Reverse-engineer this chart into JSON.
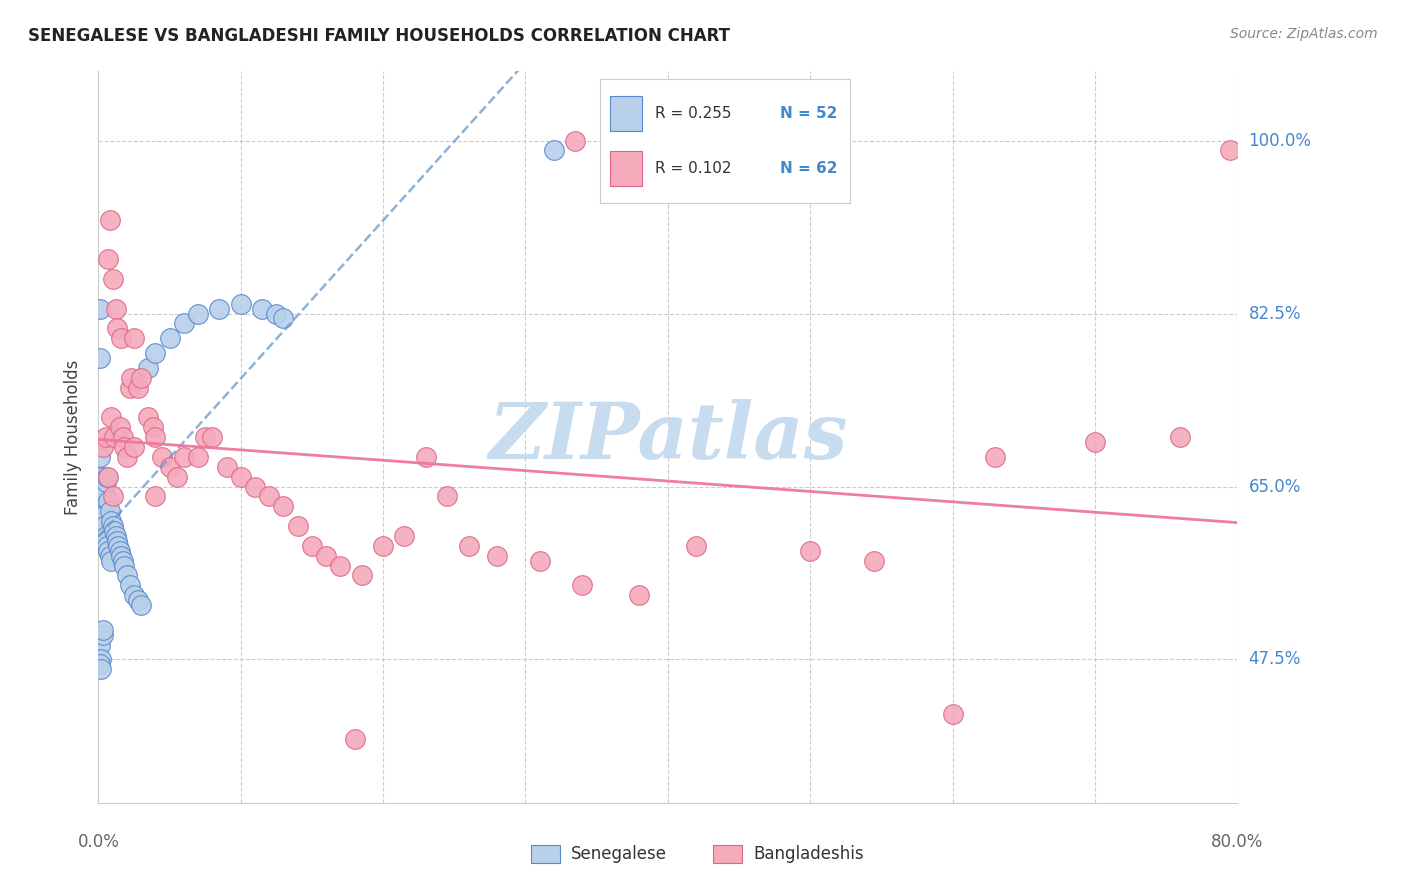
{
  "title": "SENEGALESE VS BANGLADESHI FAMILY HOUSEHOLDS CORRELATION CHART",
  "source": "Source: ZipAtlas.com",
  "ylabel": "Family Households",
  "ytick_labels": [
    "100.0%",
    "82.5%",
    "65.0%",
    "47.5%"
  ],
  "ytick_values": [
    1.0,
    0.825,
    0.65,
    0.475
  ],
  "legend_blue_R": "R = 0.255",
  "legend_blue_N": "N = 52",
  "legend_pink_R": "R = 0.102",
  "legend_pink_N": "N = 62",
  "blue_fill": "#B8D0EA",
  "pink_fill": "#F4AABB",
  "blue_edge": "#5588CC",
  "pink_edge": "#DD6688",
  "blue_line": "#6699CC",
  "pink_line": "#EE7799",
  "watermark_color": "#C8DCF0",
  "grid_color": "#CCCCCC",
  "blue_scatter_x": [
    0.001,
    0.001,
    0.001,
    0.001,
    0.001,
    0.002,
    0.002,
    0.002,
    0.003,
    0.003,
    0.003,
    0.004,
    0.004,
    0.005,
    0.005,
    0.005,
    0.006,
    0.006,
    0.007,
    0.007,
    0.008,
    0.008,
    0.009,
    0.009,
    0.01,
    0.011,
    0.012,
    0.013,
    0.014,
    0.015,
    0.016,
    0.017,
    0.018,
    0.02,
    0.022,
    0.025,
    0.028,
    0.03,
    0.035,
    0.04,
    0.05,
    0.06,
    0.07,
    0.085,
    0.1,
    0.115,
    0.125,
    0.13,
    0.001,
    0.002,
    0.32,
    0.003
  ],
  "blue_scatter_y": [
    0.83,
    0.78,
    0.68,
    0.66,
    0.49,
    0.66,
    0.64,
    0.475,
    0.65,
    0.62,
    0.5,
    0.645,
    0.61,
    0.655,
    0.6,
    0.595,
    0.66,
    0.59,
    0.635,
    0.585,
    0.625,
    0.58,
    0.615,
    0.575,
    0.61,
    0.605,
    0.6,
    0.595,
    0.59,
    0.585,
    0.58,
    0.575,
    0.57,
    0.56,
    0.55,
    0.54,
    0.535,
    0.53,
    0.77,
    0.785,
    0.8,
    0.815,
    0.825,
    0.83,
    0.835,
    0.83,
    0.825,
    0.82,
    0.47,
    0.465,
    0.99,
    0.505
  ],
  "pink_scatter_x": [
    0.003,
    0.005,
    0.007,
    0.008,
    0.009,
    0.01,
    0.011,
    0.012,
    0.013,
    0.015,
    0.016,
    0.017,
    0.018,
    0.02,
    0.022,
    0.023,
    0.025,
    0.028,
    0.03,
    0.035,
    0.038,
    0.04,
    0.045,
    0.05,
    0.055,
    0.06,
    0.07,
    0.075,
    0.08,
    0.09,
    0.1,
    0.11,
    0.12,
    0.13,
    0.14,
    0.15,
    0.16,
    0.17,
    0.185,
    0.2,
    0.215,
    0.23,
    0.245,
    0.26,
    0.28,
    0.31,
    0.34,
    0.38,
    0.42,
    0.5,
    0.545,
    0.6,
    0.63,
    0.7,
    0.76,
    0.795,
    0.007,
    0.01,
    0.025,
    0.04,
    0.18,
    0.335
  ],
  "pink_scatter_y": [
    0.69,
    0.7,
    0.88,
    0.92,
    0.72,
    0.86,
    0.7,
    0.83,
    0.81,
    0.71,
    0.8,
    0.7,
    0.69,
    0.68,
    0.75,
    0.76,
    0.69,
    0.75,
    0.76,
    0.72,
    0.71,
    0.7,
    0.68,
    0.67,
    0.66,
    0.68,
    0.68,
    0.7,
    0.7,
    0.67,
    0.66,
    0.65,
    0.64,
    0.63,
    0.61,
    0.59,
    0.58,
    0.57,
    0.56,
    0.59,
    0.6,
    0.68,
    0.64,
    0.59,
    0.58,
    0.575,
    0.55,
    0.54,
    0.59,
    0.585,
    0.575,
    0.42,
    0.68,
    0.695,
    0.7,
    0.99,
    0.66,
    0.64,
    0.8,
    0.64,
    0.395,
    1.0
  ]
}
